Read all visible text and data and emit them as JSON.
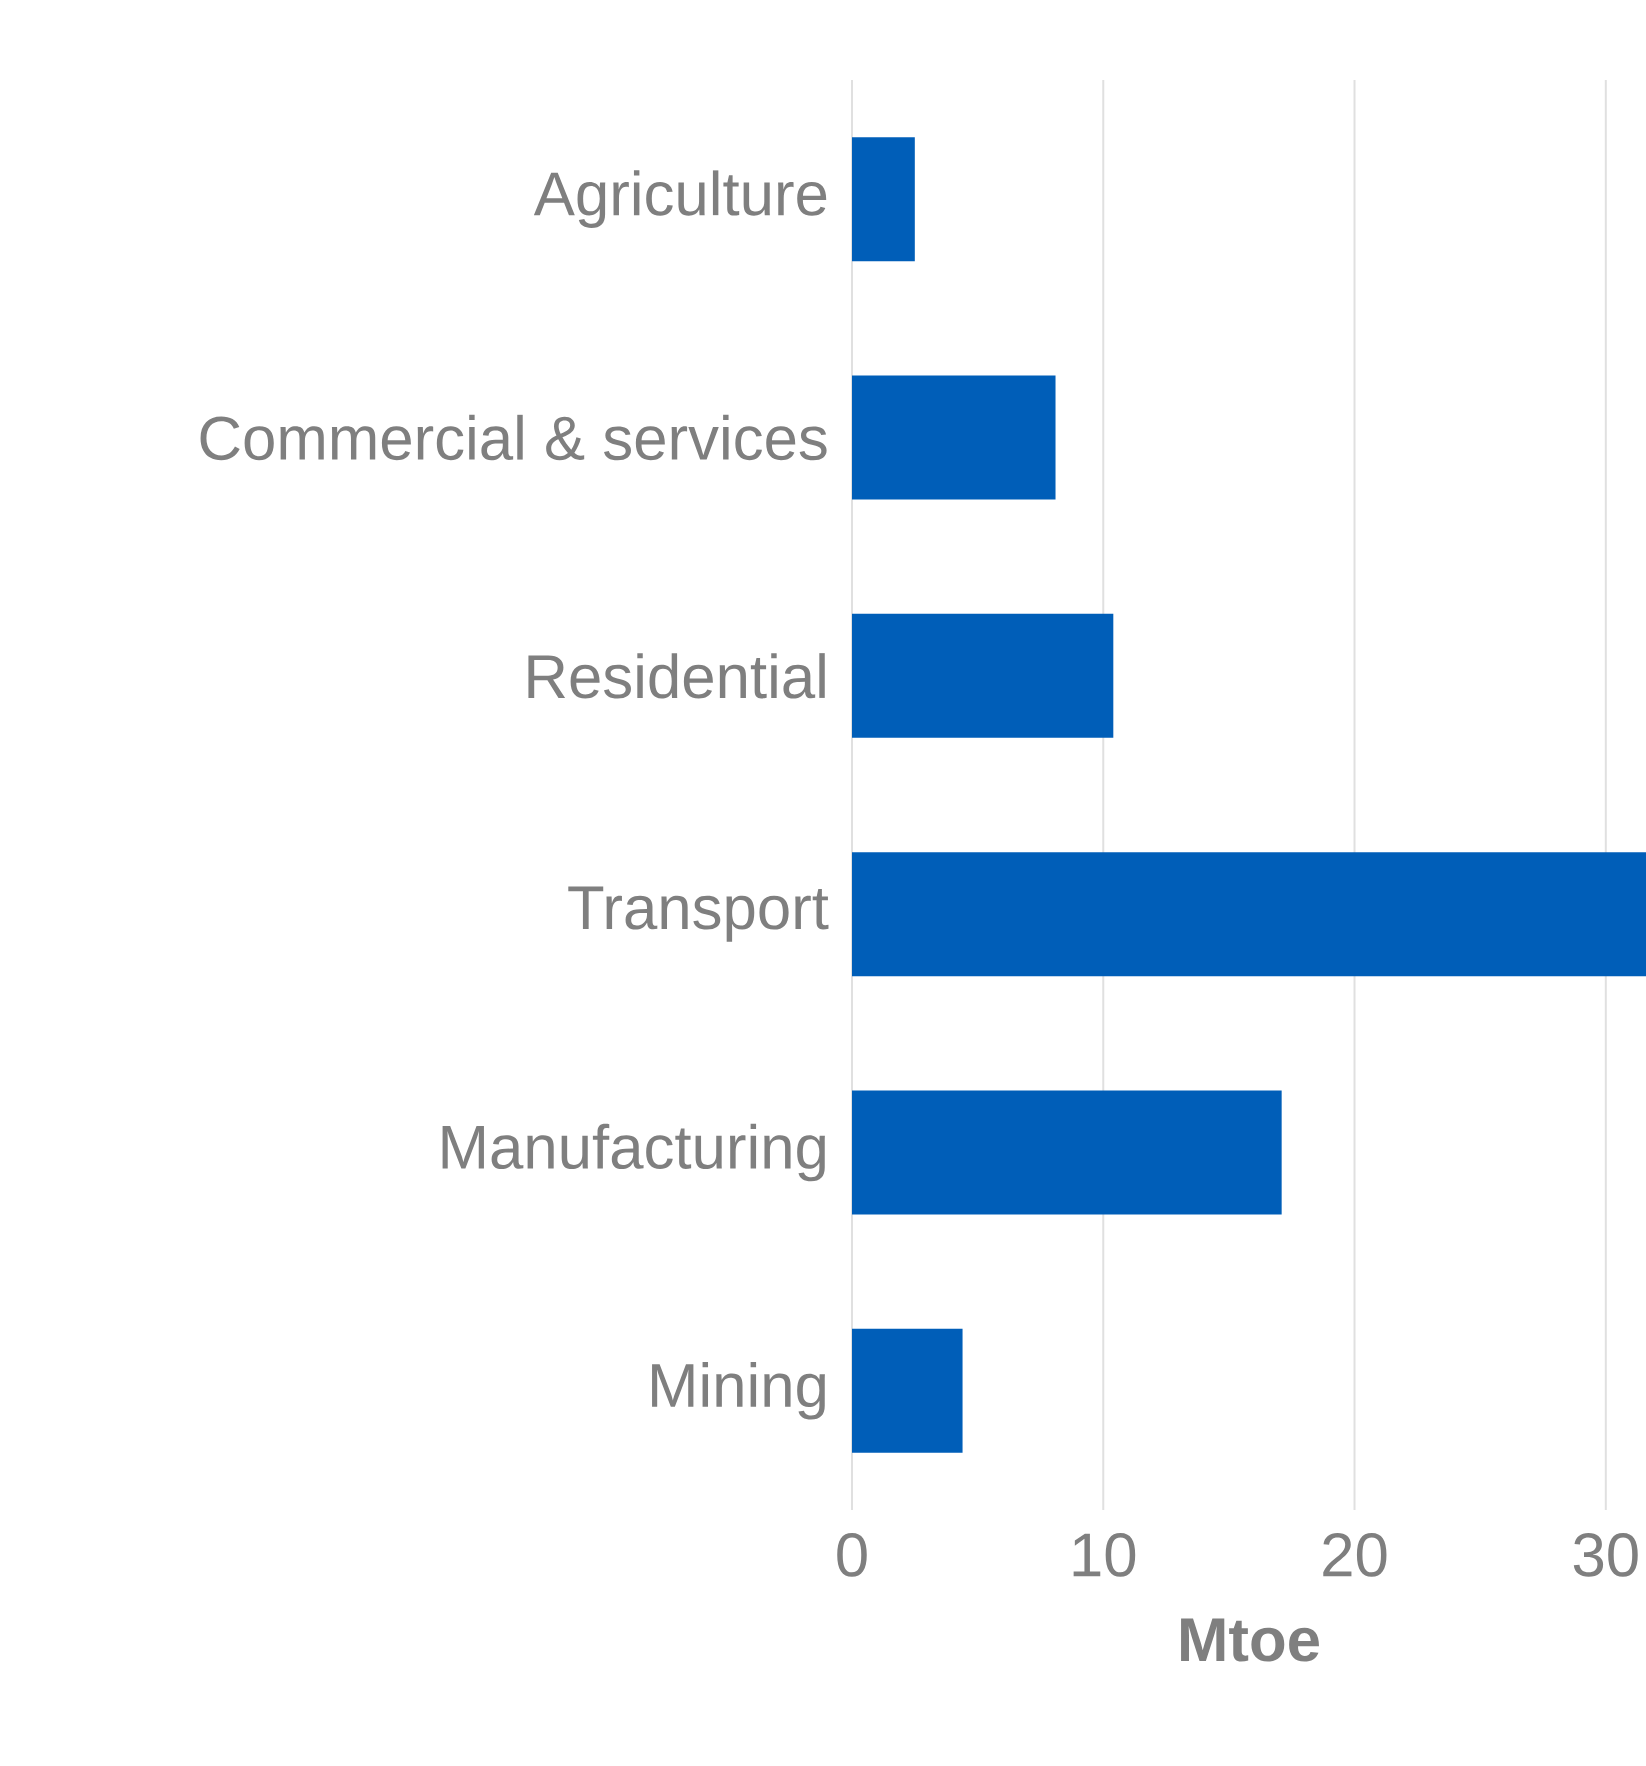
{
  "chart_data": {
    "type": "bar",
    "orientation": "horizontal",
    "xlabel": "Mtoe",
    "categories": [
      "Agriculture",
      "Commercial & services",
      "Residential",
      "Transport",
      "Manufacturing",
      "Mining"
    ],
    "values": [
      2.5,
      8.1,
      10.4,
      31.6,
      17.1,
      4.4
    ],
    "color": "#005eb8",
    "xlim": [
      0,
      31.6
    ],
    "xticks": [
      0,
      10,
      20,
      30
    ],
    "grid": "x"
  }
}
